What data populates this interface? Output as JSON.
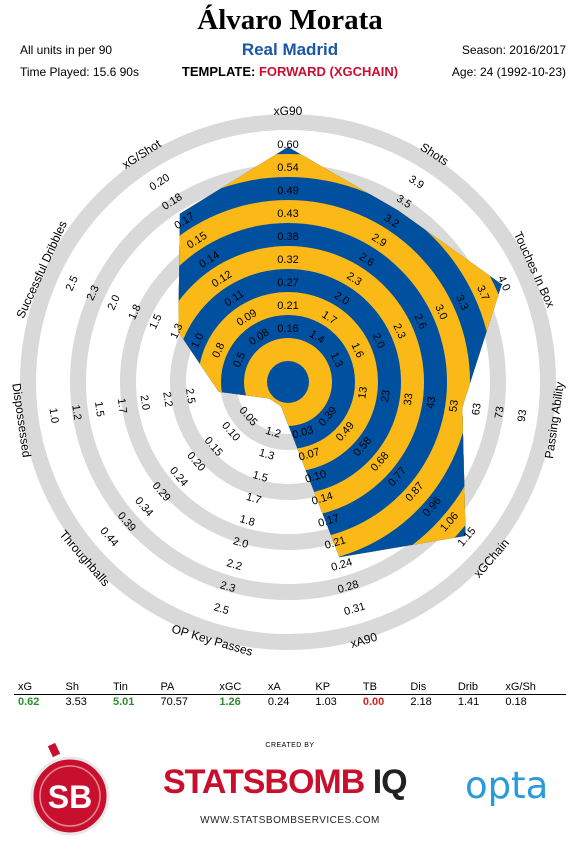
{
  "header": {
    "player_name": "Álvaro Morata",
    "team": "Real Madrid",
    "units": "All units in per 90",
    "time_played": "Time Played: 15.6 90s",
    "template_label": "TEMPLATE:",
    "template_value": "FORWARD (XGCHAIN)",
    "season": "Season: 2016/2017",
    "age": "Age: 24 (1992-10-23)"
  },
  "colors": {
    "ring_blue": "#0050a0",
    "ring_yellow": "#fbb917",
    "background_ring": "#d9d9d9",
    "positive": "#2e8b2e",
    "negative": "#d92020",
    "team": "#1a57a5"
  },
  "chart_data": {
    "type": "radar",
    "axes": [
      {
        "label": "xG90",
        "ticks": [
          "0.60",
          "0.54",
          "0.49",
          "0.43",
          "0.38",
          "0.32",
          "0.27",
          "0.21",
          "0.16"
        ],
        "value": 0.62
      },
      {
        "label": "Shots",
        "ticks": [
          "3.9",
          "3.5",
          "3.2",
          "2.9",
          "2.6",
          "2.3",
          "2.0",
          "1.7",
          "1.4"
        ],
        "value": 3.53
      },
      {
        "label": "Touches In Box",
        "ticks": [
          "4.0",
          "3.7",
          "3.3",
          "3.0",
          "2.6",
          "2.3",
          "2.0",
          "1.6",
          "1.3"
        ],
        "value": 5.01
      },
      {
        "label": "Passing Ability",
        "ticks": [
          "93",
          "73",
          "63",
          "53",
          "43",
          "33",
          "23",
          "13"
        ],
        "value": 70.57
      },
      {
        "label": "xGChain",
        "ticks": [
          "1.15",
          "1.06",
          "0.96",
          "0.87",
          "0.77",
          "0.68",
          "0.58",
          "0.49",
          "0.39"
        ],
        "value": 1.26
      },
      {
        "label": "xA90",
        "ticks": [
          "0.31",
          "0.28",
          "0.24",
          "0.21",
          "0.17",
          "0.14",
          "0.10",
          "0.07",
          "0.03"
        ],
        "value": 0.24
      },
      {
        "label": "OP Key Passes",
        "ticks": [
          "2.5",
          "2.3",
          "2.2",
          "2.0",
          "1.8",
          "1.7",
          "1.5",
          "1.3",
          "1.2"
        ],
        "value": 1.03
      },
      {
        "label": "Throughballs",
        "ticks": [
          "0.44",
          "0.39",
          "0.34",
          "0.29",
          "0.24",
          "0.20",
          "0.15",
          "0.10",
          "0.05"
        ],
        "value": 0.0
      },
      {
        "label": "Dispossessed",
        "ticks": [
          "1.0",
          "1.2",
          "1.5",
          "1.7",
          "2.0",
          "2.2",
          "2.5"
        ],
        "value": 2.18
      },
      {
        "label": "Successful Dribbles",
        "ticks": [
          "2.5",
          "2.3",
          "2.0",
          "1.8",
          "1.5",
          "1.3",
          "1.0",
          "0.8",
          "0.5"
        ],
        "value": 1.41
      },
      {
        "label": "xG/Shot",
        "ticks": [
          "0.20",
          "0.18",
          "0.17",
          "0.15",
          "0.14",
          "0.12",
          "0.11",
          "0.09",
          "0.08"
        ],
        "value": 0.18
      }
    ]
  },
  "stats_table": {
    "headers": [
      "xG",
      "Sh",
      "Tin",
      "PA",
      "xGC",
      "xA",
      "KP",
      "TB",
      "Dis",
      "Drib",
      "xG/Sh"
    ],
    "values": [
      "0.62",
      "3.53",
      "5.01",
      "70.57",
      "1.26",
      "0.24",
      "1.03",
      "0.00",
      "2.18",
      "1.41",
      "0.18"
    ],
    "value_colors": [
      "green",
      "",
      "green",
      "",
      "green",
      "",
      "",
      "red",
      "",
      "",
      ""
    ]
  },
  "footer": {
    "created_by": "CREATED BY",
    "logo_sb": "SB",
    "brand_main": "STATSBOMB",
    "brand_iq": "IQ",
    "url": "WWW.STATSBOMBSERVICES.COM",
    "opta": "opta"
  }
}
